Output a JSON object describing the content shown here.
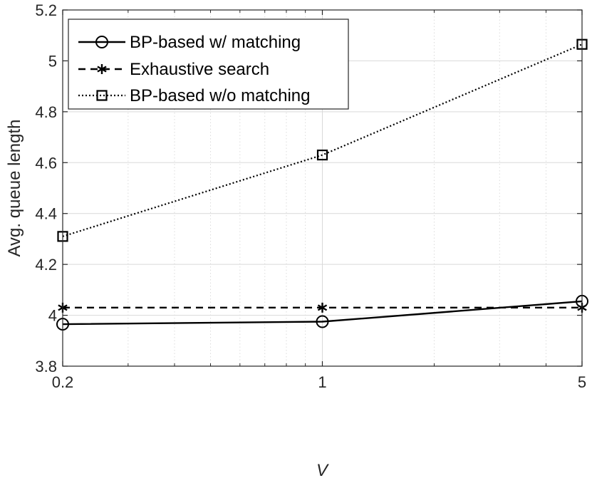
{
  "chart_data": {
    "type": "line",
    "title": "",
    "xlabel": "V",
    "ylabel": "Avg. queue length",
    "x_scale": "log",
    "xlim": [
      0.2,
      5
    ],
    "ylim": [
      3.8,
      5.2
    ],
    "x_ticks": [
      0.2,
      1,
      5
    ],
    "x_tick_labels": [
      "0.2",
      "1",
      "5"
    ],
    "y_ticks": [
      3.8,
      4.0,
      4.2,
      4.4,
      4.6,
      4.8,
      5.0,
      5.2
    ],
    "y_tick_labels": [
      "3.8",
      "4",
      "4.2",
      "4.4",
      "4.6",
      "4.8",
      "5",
      "5.2"
    ],
    "grid": true,
    "legend_position": "top-left",
    "x": [
      0.2,
      1,
      5
    ],
    "series": [
      {
        "name": "BP-based w/ matching",
        "values": [
          3.965,
          3.975,
          4.055
        ],
        "line_style": "solid",
        "marker": "circle",
        "color": "#000000"
      },
      {
        "name": "Exhaustive search",
        "values": [
          4.03,
          4.03,
          4.03
        ],
        "line_style": "dashed",
        "marker": "asterisk",
        "color": "#000000"
      },
      {
        "name": "BP-based w/o matching",
        "values": [
          4.31,
          4.63,
          5.065
        ],
        "line_style": "dotted",
        "marker": "square",
        "color": "#000000"
      }
    ]
  }
}
